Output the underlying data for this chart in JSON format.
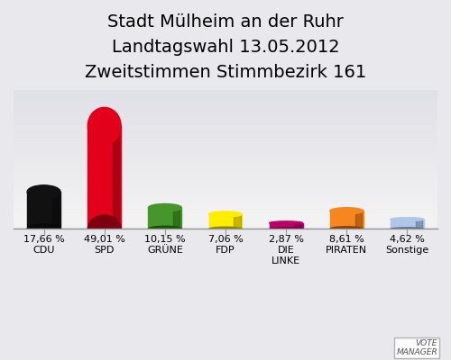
{
  "title": "Stadt Mülheim an der Ruhr",
  "subtitle1": "Landtagswahl 13.05.2012",
  "subtitle2": "Zweitstimmen Stimmbezirk 161",
  "categories": [
    "CDU",
    "SPD",
    "GRÜNE",
    "FDP",
    "DIE\nLINKE",
    "PIRATEN",
    "Sonstige"
  ],
  "values": [
    17.66,
    49.01,
    10.15,
    7.06,
    2.87,
    8.61,
    4.62
  ],
  "bar_colors": [
    "#111111",
    "#e2001a",
    "#46962b",
    "#ffed00",
    "#be0069",
    "#f6861f",
    "#aec6e8"
  ],
  "value_labels": [
    "17,66 %",
    "49,01 %",
    "10,15 %",
    "7,06 %",
    "2,87 %",
    "8,61 %",
    "4,62 %"
  ],
  "background_color_top": "#e0e0e8",
  "background_color_bottom": "#f5f5f5",
  "title_fontsize": 14,
  "subtitle_fontsize": 9,
  "label_fontsize": 8,
  "tick_fontsize": 8
}
